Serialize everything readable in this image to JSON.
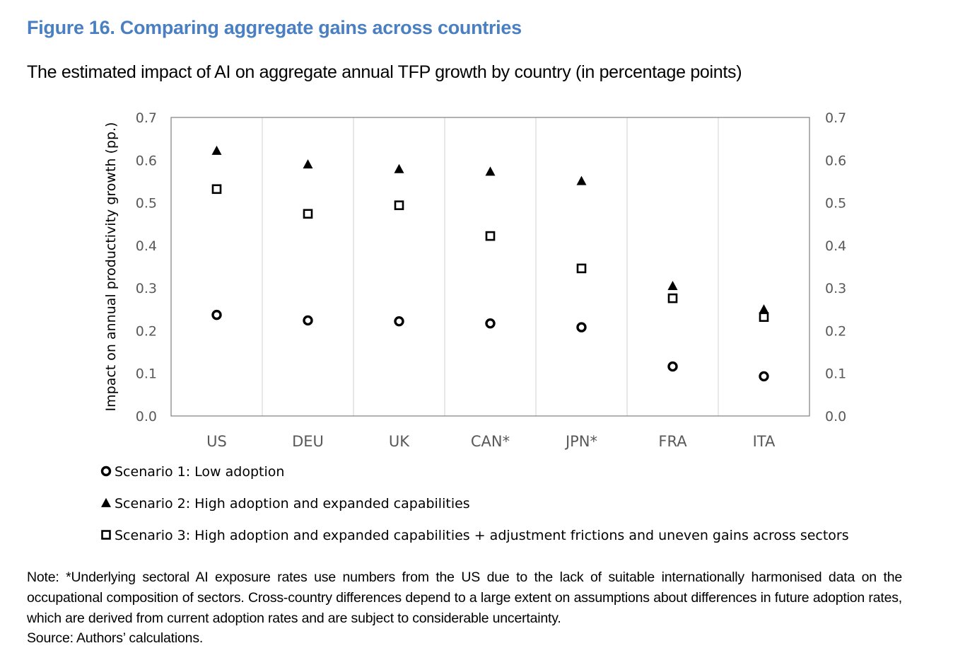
{
  "figure": {
    "title": "Figure 16. Comparing aggregate gains across countries",
    "subtitle": "The estimated impact of AI on aggregate annual TFP growth by country (in percentage points)",
    "note": "Note: *Underlying sectoral AI exposure rates use numbers from the US due to the lack of suitable internationally harmonised data on the occupational composition of sectors. Cross-country differences depend to a large extent on assumptions about differences in future adoption rates, which are derived from current adoption rates and are subject to considerable uncertainty.",
    "source": "Source: Authors’ calculations."
  },
  "chart_data": {
    "type": "scatter",
    "title": "The estimated impact of AI on aggregate annual TFP growth by country (in percentage points)",
    "xlabel": "",
    "ylabel": "Impact on annual productivity growth (pp.)",
    "ylim": [
      0,
      0.7
    ],
    "yticks": [
      "0.0",
      "0.1",
      "0.2",
      "0.3",
      "0.4",
      "0.5",
      "0.6",
      "0.7"
    ],
    "grid": "vertical separators between categories",
    "categories": [
      "US",
      "DEU",
      "UK",
      "CAN*",
      "JPN*",
      "FRA",
      "ITA"
    ],
    "series": [
      {
        "name": "Scenario 1: Low adoption",
        "marker": "circle",
        "values": [
          0.237,
          0.224,
          0.222,
          0.217,
          0.208,
          0.116,
          0.093
        ]
      },
      {
        "name": "Scenario 2: High adoption and expanded capabilities",
        "marker": "triangle",
        "values": [
          0.622,
          0.59,
          0.579,
          0.573,
          0.551,
          0.305,
          0.25
        ]
      },
      {
        "name": "Scenario 3: High adoption and expanded capabilities + adjustment frictions and uneven gains across sectors",
        "marker": "square",
        "values": [
          0.532,
          0.474,
          0.494,
          0.422,
          0.346,
          0.276,
          0.232
        ]
      }
    ],
    "legend_position": "bottom-left",
    "colors": {
      "marker": "#000000",
      "axis": "#7f7f7f",
      "grid": "#d9d9d9",
      "text": "#595959"
    }
  }
}
